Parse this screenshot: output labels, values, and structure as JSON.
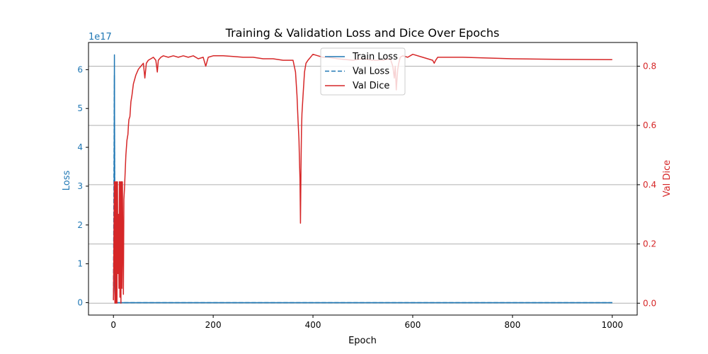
{
  "chart_data": {
    "type": "line",
    "title": "Training & Validation Loss and Dice Over Epochs",
    "xlabel": "Epoch",
    "ylabel_left": "Loss",
    "ylabel_right": "Val Dice",
    "left_axis_offset": "1e17",
    "xlim": [
      -50,
      1050
    ],
    "ylim_left": [
      -0.32,
      6.7
    ],
    "ylim_right": [
      -0.04,
      0.88
    ],
    "x_ticks": [
      0,
      200,
      400,
      600,
      800,
      1000
    ],
    "x_tick_labels": [
      "0",
      "200",
      "400",
      "600",
      "800",
      "1000"
    ],
    "left_ticks": [
      0,
      1,
      2,
      3,
      4,
      5,
      6
    ],
    "left_tick_labels": [
      "0",
      "1",
      "2",
      "3",
      "4",
      "5",
      "6"
    ],
    "right_ticks": [
      0.0,
      0.2,
      0.4,
      0.6,
      0.8
    ],
    "right_tick_labels": [
      "0.0",
      "0.2",
      "0.4",
      "0.6",
      "0.8"
    ],
    "grid": "horizontal lines at right-axis ticks",
    "legend_placement": "upper-center",
    "colors": {
      "loss": "#1f77b4",
      "dice": "#d62728",
      "axis": "#000000",
      "grid": "#b0b0b0"
    },
    "series": [
      {
        "name": "Train Loss",
        "axis": "left",
        "style": "solid",
        "color": "#1f77b4",
        "x": [
          0,
          1,
          2,
          3,
          4,
          5,
          8,
          15,
          30,
          100,
          500,
          1000
        ],
        "y": [
          0.1,
          0.5,
          6.38,
          0.2,
          0.05,
          0,
          0,
          0,
          0,
          0,
          0,
          0
        ]
      },
      {
        "name": "Val Loss",
        "axis": "left",
        "style": "dashed",
        "color": "#1f77b4",
        "x": [
          0,
          1,
          2,
          3,
          4,
          5,
          8,
          15,
          30,
          100,
          500,
          1000
        ],
        "y": [
          0.1,
          3.0,
          5.85,
          0.5,
          0.05,
          0,
          0,
          0,
          0,
          0,
          0,
          0
        ]
      },
      {
        "name": "Val Dice",
        "axis": "right",
        "style": "solid",
        "color": "#d62728",
        "x": [
          0,
          2,
          3,
          4,
          5,
          6,
          7,
          8,
          9,
          10,
          11,
          12,
          13,
          14,
          15,
          16,
          17,
          18,
          19,
          20,
          21,
          22,
          23,
          25,
          27,
          29,
          30,
          31,
          33,
          35,
          37,
          40,
          45,
          50,
          55,
          60,
          63,
          66,
          70,
          75,
          80,
          85,
          88,
          90,
          95,
          100,
          110,
          120,
          130,
          140,
          150,
          160,
          170,
          180,
          185,
          190,
          200,
          220,
          240,
          260,
          280,
          300,
          320,
          340,
          355,
          360,
          365,
          368,
          370,
          372,
          373,
          374,
          375,
          376,
          377,
          378,
          380,
          383,
          386,
          390,
          400,
          410,
          420,
          430,
          450,
          480,
          500,
          520,
          540,
          555,
          560,
          563,
          565,
          567,
          570,
          572,
          575,
          580,
          590,
          600,
          620,
          640,
          643,
          646,
          650,
          660,
          680,
          700,
          800,
          900,
          1000
        ],
        "y": [
          0.01,
          0.41,
          0.0,
          0.41,
          0.0,
          0.41,
          0.0,
          0.41,
          0.1,
          0.3,
          0.05,
          0.41,
          0.02,
          0.41,
          0.0,
          0.41,
          0.05,
          0.41,
          0.2,
          0.03,
          0.35,
          0.38,
          0.42,
          0.5,
          0.55,
          0.57,
          0.6,
          0.62,
          0.63,
          0.68,
          0.7,
          0.74,
          0.77,
          0.79,
          0.8,
          0.81,
          0.76,
          0.81,
          0.82,
          0.825,
          0.83,
          0.82,
          0.78,
          0.82,
          0.83,
          0.835,
          0.83,
          0.835,
          0.83,
          0.835,
          0.83,
          0.835,
          0.825,
          0.83,
          0.8,
          0.83,
          0.835,
          0.835,
          0.833,
          0.83,
          0.83,
          0.825,
          0.825,
          0.82,
          0.82,
          0.82,
          0.78,
          0.7,
          0.62,
          0.55,
          0.48,
          0.42,
          0.27,
          0.45,
          0.58,
          0.64,
          0.7,
          0.78,
          0.81,
          0.82,
          0.84,
          0.835,
          0.83,
          0.83,
          0.825,
          0.82,
          0.825,
          0.82,
          0.82,
          0.825,
          0.8,
          0.76,
          0.8,
          0.72,
          0.79,
          0.81,
          0.83,
          0.835,
          0.83,
          0.84,
          0.83,
          0.82,
          0.81,
          0.82,
          0.83,
          0.83,
          0.83,
          0.83,
          0.825,
          0.823,
          0.822
        ]
      }
    ]
  }
}
